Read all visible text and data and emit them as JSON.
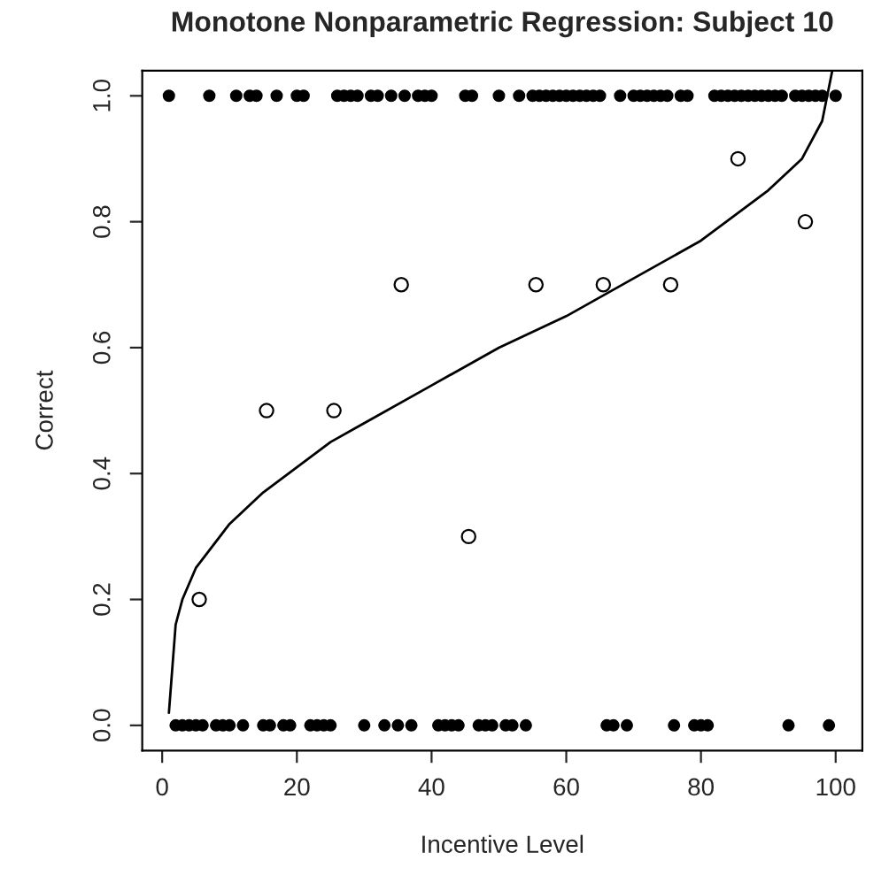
{
  "chart_data": {
    "type": "scatter",
    "title": "Monotone Nonparametric Regression: Subject 10",
    "xlabel": "Incentive Level",
    "ylabel": "Correct",
    "xlim": [
      -2.96,
      103.96
    ],
    "xticks": [
      0,
      20,
      40,
      60,
      80,
      100
    ],
    "ylim": [
      -0.04,
      1.04
    ],
    "yticks": [
      {
        "value": 0,
        "label": "0.0"
      },
      {
        "value": 0.2,
        "label": "0.2"
      },
      {
        "value": 0.4,
        "label": "0.4"
      },
      {
        "value": 0.6,
        "label": "0.6"
      },
      {
        "value": 0.8,
        "label": "0.8"
      },
      {
        "value": 1,
        "label": "1.0"
      }
    ],
    "grid": false,
    "legend": false,
    "marker": "circle",
    "series": [
      {
        "color": "#000000",
        "marker": "circle",
        "x": [
          1,
          7,
          11,
          13,
          14,
          17,
          20,
          21,
          26,
          27,
          28,
          29,
          31,
          32,
          34,
          36,
          38,
          39,
          40,
          45,
          46,
          50,
          53,
          55,
          56,
          57,
          58,
          59,
          60,
          61,
          62,
          63,
          64,
          65,
          68,
          70,
          71,
          72,
          73,
          74,
          75,
          77,
          78,
          82,
          83,
          84,
          85,
          86,
          87,
          88,
          89,
          90,
          91,
          92,
          94,
          95,
          96,
          97,
          98,
          100
        ],
        "values": [
          1,
          1,
          1,
          1,
          1,
          1,
          1,
          1,
          1,
          1,
          1,
          1,
          1,
          1,
          1,
          1,
          1,
          1,
          1,
          1,
          1,
          1,
          1,
          1,
          1,
          1,
          1,
          1,
          1,
          1,
          1,
          1,
          1,
          1,
          1,
          1,
          1,
          1,
          1,
          1,
          1,
          1,
          1,
          1,
          1,
          1,
          1,
          1,
          1,
          1,
          1,
          1,
          1,
          1,
          1,
          1,
          1,
          1,
          1,
          1
        ]
      },
      {
        "color": "#000000",
        "marker": "circle",
        "x": [
          2,
          3,
          4,
          5,
          6,
          8,
          9,
          10,
          12,
          15,
          16,
          18,
          19,
          22,
          23,
          24,
          25,
          30,
          33,
          35,
          37,
          41,
          42,
          43,
          44,
          47,
          48,
          49,
          51,
          52,
          54,
          66,
          67,
          69,
          76,
          79,
          80,
          81,
          93,
          99
        ],
        "values": [
          0,
          0,
          0,
          0,
          0,
          0,
          0,
          0,
          0,
          0,
          0,
          0,
          0,
          0,
          0,
          0,
          0,
          0,
          0,
          0,
          0,
          0,
          0,
          0,
          0,
          0,
          0,
          0,
          0,
          0,
          0,
          0,
          0,
          0,
          0,
          0,
          0,
          0,
          0,
          0
        ]
      },
      {
        "color": "#000000",
        "x": [
          5.5,
          15.5,
          25.5,
          35.5,
          45.5,
          55.5,
          65.5,
          75.5,
          85.5,
          95.5
        ],
        "values": [
          0.2,
          0.5,
          0.5,
          0.7,
          0.3,
          0.7,
          0.7,
          0.7,
          0.9,
          0.8
        ]
      },
      {
        "type": "line",
        "color": "#000000",
        "marker": "none",
        "x": [
          1,
          2,
          3,
          5,
          10,
          15,
          20,
          25,
          30,
          40,
          50,
          60,
          70,
          80,
          90,
          95,
          98,
          99.5
        ],
        "values": [
          0.02,
          0.16,
          0.2,
          0.25,
          0.32,
          0.37,
          0.41,
          0.45,
          0.48,
          0.54,
          0.6,
          0.65,
          0.71,
          0.77,
          0.85,
          0.9,
          0.96,
          1.04
        ]
      }
    ]
  }
}
